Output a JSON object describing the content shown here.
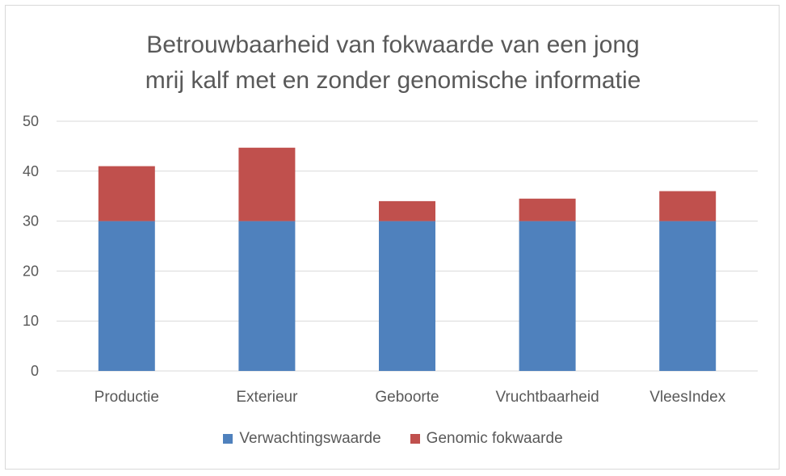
{
  "chart_data": {
    "type": "bar",
    "stacked": true,
    "title_lines": [
      "Betrouwbaarheid van fokwaarde van een jong",
      "mrij kalf met en zonder genomische informatie"
    ],
    "categories": [
      "Productie",
      "Exterieur",
      "Geboorte",
      "Vruchtbaarheid",
      "VleesIndex"
    ],
    "series": [
      {
        "name": "Verwachtingswaarde",
        "values": [
          30,
          30,
          30,
          30,
          30
        ],
        "color": "#4f81bd"
      },
      {
        "name": "Genomic fokwaarde",
        "values": [
          11,
          14.7,
          4,
          4.5,
          6
        ],
        "color": "#c0504d"
      }
    ],
    "ylim": [
      0,
      50
    ],
    "yticks": [
      "0",
      "10",
      "20",
      "30",
      "40",
      "50"
    ],
    "grid": true,
    "legend_position": "bottom",
    "gridline_color": "#d9d9d9"
  }
}
